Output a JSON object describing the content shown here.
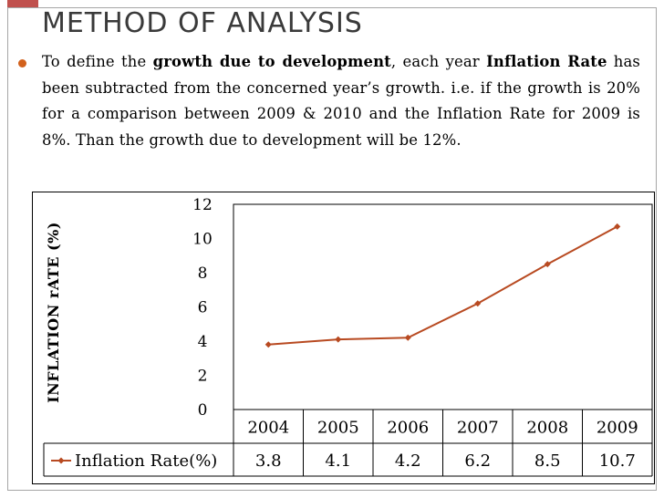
{
  "slide": {
    "title": "METHOD OF ANALYSIS",
    "bullet": {
      "p1": "To define the ",
      "b1": "growth due to development",
      "p2": ", each year ",
      "b2": "Inflation Rate",
      "p3": " has been subtracted from the concerned year’s growth. i.e. if the growth is 20% for a comparison between 2009 & 2010 and the Inflation Rate for 2009 is 8%. Than the growth due to development will be 12%."
    },
    "colors": {
      "accent": "#d2611c",
      "series_line": "#b84a21",
      "title_text": "#3a3a3a"
    }
  },
  "chart_data": {
    "type": "line",
    "categories": [
      "2004",
      "2005",
      "2006",
      "2007",
      "2008",
      "2009"
    ],
    "series": [
      {
        "name": "Inflation Rate(%)",
        "values": [
          3.8,
          4.1,
          4.2,
          6.2,
          8.5,
          10.7
        ]
      }
    ],
    "ylabel": "INFLATION rATE (%)",
    "xlabel": "",
    "ylim": [
      0,
      12
    ],
    "yticks": [
      0,
      2,
      4,
      6,
      8,
      10,
      12
    ],
    "data_table": true,
    "legend": "data-table"
  }
}
